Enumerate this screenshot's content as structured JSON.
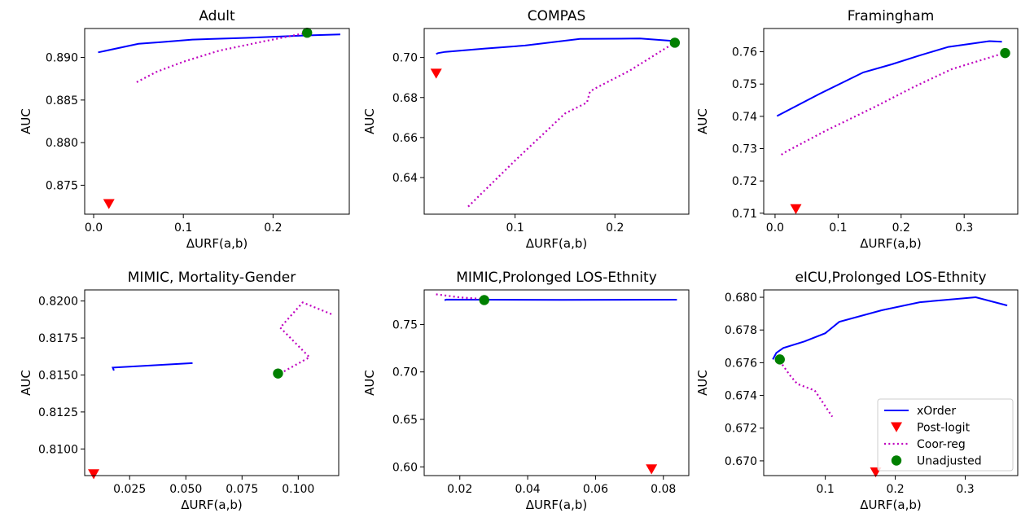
{
  "legend": {
    "entries": [
      {
        "label": "xOrder",
        "series": "xOrder"
      },
      {
        "label": "Post-logit",
        "series": "Post-logit"
      },
      {
        "label": "Coor-reg",
        "series": "Coor-reg"
      },
      {
        "label": "Unadjusted",
        "series": "Unadjusted"
      }
    ],
    "location": "lower-right of last panel"
  },
  "styles": {
    "xOrder": {
      "color": "#0000ff",
      "kind": "solid-line"
    },
    "Post-logit": {
      "color": "#ff0000",
      "kind": "down-triangle"
    },
    "Coor-reg": {
      "color": "#bf00bf",
      "kind": "dotted-line"
    },
    "Unadjusted": {
      "color": "#008000",
      "kind": "circle"
    }
  },
  "chart_data": [
    {
      "type": "line",
      "title": "Adult",
      "xlabel": "ΔURF(a,b)",
      "ylabel": "AUC",
      "xlim": [
        -0.01,
        0.285
      ],
      "ylim": [
        0.8716,
        0.8934
      ],
      "xticks": [
        {
          "v": 0.0,
          "t": "0.0"
        },
        {
          "v": 0.1,
          "t": "0.1"
        },
        {
          "v": 0.2,
          "t": "0.2"
        }
      ],
      "yticks": [
        {
          "v": 0.875,
          "t": "0.875"
        },
        {
          "v": 0.88,
          "t": "0.880"
        },
        {
          "v": 0.885,
          "t": "0.885"
        },
        {
          "v": 0.89,
          "t": "0.890"
        }
      ],
      "grid": false,
      "series": [
        {
          "name": "xOrder",
          "points": [
            [
              0.005,
              0.8906
            ],
            [
              0.05,
              0.8916
            ],
            [
              0.075,
              0.8918
            ],
            [
              0.11,
              0.8921
            ],
            [
              0.17,
              0.8923
            ],
            [
              0.24,
              0.8926
            ],
            [
              0.275,
              0.8927
            ]
          ]
        },
        {
          "name": "Coor-reg",
          "points": [
            [
              0.048,
              0.8871
            ],
            [
              0.07,
              0.8883
            ],
            [
              0.1,
              0.8895
            ],
            [
              0.14,
              0.8908
            ],
            [
              0.19,
              0.8919
            ],
            [
              0.238,
              0.8929
            ]
          ]
        },
        {
          "name": "Post-logit",
          "points": [
            [
              0.017,
              0.8728
            ]
          ]
        },
        {
          "name": "Unadjusted",
          "points": [
            [
              0.238,
              0.8929
            ]
          ]
        }
      ]
    },
    {
      "type": "line",
      "title": "COMPAS",
      "xlabel": "ΔURF(a,b)",
      "ylabel": "AUC",
      "xlim": [
        0.009,
        0.274
      ],
      "ylim": [
        0.6217,
        0.7145
      ],
      "xticks": [
        {
          "v": 0.1,
          "t": "0.1"
        },
        {
          "v": 0.2,
          "t": "0.2"
        }
      ],
      "yticks": [
        {
          "v": 0.64,
          "t": "0.64"
        },
        {
          "v": 0.66,
          "t": "0.66"
        },
        {
          "v": 0.68,
          "t": "0.68"
        },
        {
          "v": 0.7,
          "t": "0.70"
        }
      ],
      "grid": false,
      "series": [
        {
          "name": "xOrder",
          "points": [
            [
              0.021,
              0.7018
            ],
            [
              0.023,
              0.7022
            ],
            [
              0.03,
              0.7028
            ],
            [
              0.07,
              0.7045
            ],
            [
              0.11,
              0.706
            ],
            [
              0.165,
              0.7093
            ],
            [
              0.225,
              0.7095
            ],
            [
              0.258,
              0.7083
            ]
          ]
        },
        {
          "name": "Coor-reg",
          "points": [
            [
              0.053,
              0.6255
            ],
            [
              0.1,
              0.6485
            ],
            [
              0.15,
              0.672
            ],
            [
              0.172,
              0.6775
            ],
            [
              0.175,
              0.683
            ],
            [
              0.18,
              0.6845
            ],
            [
              0.215,
              0.6935
            ],
            [
              0.258,
              0.7069
            ]
          ]
        },
        {
          "name": "Post-logit",
          "points": [
            [
              0.021,
              0.692
            ]
          ]
        },
        {
          "name": "Unadjusted",
          "points": [
            [
              0.26,
              0.7074
            ]
          ]
        }
      ]
    },
    {
      "type": "line",
      "title": "Framingham",
      "xlabel": "ΔURF(a,b)",
      "ylabel": "AUC",
      "xlim": [
        -0.018,
        0.385
      ],
      "ylim": [
        0.7097,
        0.7672
      ],
      "xticks": [
        {
          "v": 0.0,
          "t": "0.0"
        },
        {
          "v": 0.1,
          "t": "0.1"
        },
        {
          "v": 0.2,
          "t": "0.2"
        },
        {
          "v": 0.3,
          "t": "0.3"
        }
      ],
      "yticks": [
        {
          "v": 0.71,
          "t": "0.71"
        },
        {
          "v": 0.72,
          "t": "0.72"
        },
        {
          "v": 0.73,
          "t": "0.73"
        },
        {
          "v": 0.74,
          "t": "0.74"
        },
        {
          "v": 0.75,
          "t": "0.75"
        },
        {
          "v": 0.76,
          "t": "0.76"
        }
      ],
      "grid": false,
      "series": [
        {
          "name": "xOrder",
          "points": [
            [
              0.003,
              0.7401
            ],
            [
              0.07,
              0.7469
            ],
            [
              0.14,
              0.7536
            ],
            [
              0.185,
              0.7561
            ],
            [
              0.23,
              0.7589
            ],
            [
              0.275,
              0.7615
            ],
            [
              0.34,
              0.7633
            ],
            [
              0.36,
              0.7631
            ]
          ]
        },
        {
          "name": "Coor-reg",
          "points": [
            [
              0.01,
              0.7281
            ],
            [
              0.015,
              0.7288
            ],
            [
              0.08,
              0.7355
            ],
            [
              0.16,
              0.7431
            ],
            [
              0.22,
              0.7491
            ],
            [
              0.28,
              0.7546
            ],
            [
              0.362,
              0.7595
            ]
          ]
        },
        {
          "name": "Post-logit",
          "points": [
            [
              0.033,
              0.7113
            ]
          ]
        },
        {
          "name": "Unadjusted",
          "points": [
            [
              0.365,
              0.7596
            ]
          ]
        }
      ]
    },
    {
      "type": "line",
      "title": "MIMIC, Mortality-Gender",
      "xlabel": "ΔURF(a,b)",
      "ylabel": "AUC",
      "xlim": [
        0.005,
        0.118
      ],
      "ylim": [
        0.8082,
        0.82075
      ],
      "xticks": [
        {
          "v": 0.025,
          "t": "0.025"
        },
        {
          "v": 0.05,
          "t": "0.050"
        },
        {
          "v": 0.075,
          "t": "0.075"
        },
        {
          "v": 0.1,
          "t": "0.100"
        }
      ],
      "yticks": [
        {
          "v": 0.81,
          "t": "0.8100"
        },
        {
          "v": 0.8125,
          "t": "0.8125"
        },
        {
          "v": 0.815,
          "t": "0.8150"
        },
        {
          "v": 0.8175,
          "t": "0.8175"
        },
        {
          "v": 0.82,
          "t": "0.8200"
        }
      ],
      "grid": false,
      "series": [
        {
          "name": "xOrder",
          "points": [
            [
              0.018,
              0.8153
            ],
            [
              0.0175,
              0.8155
            ],
            [
              0.053,
              0.8158
            ]
          ]
        },
        {
          "name": "Coor-reg",
          "points": [
            [
              0.092,
              0.8151
            ],
            [
              0.105,
              0.8162
            ],
            [
              0.092,
              0.8182
            ],
            [
              0.102,
              0.8199
            ],
            [
              0.115,
              0.8191
            ]
          ]
        },
        {
          "name": "Post-logit",
          "points": [
            [
              0.009,
              0.8083
            ]
          ]
        },
        {
          "name": "Unadjusted",
          "points": [
            [
              0.091,
              0.8151
            ]
          ]
        }
      ]
    },
    {
      "type": "line",
      "title": "MIMIC,Prolonged LOS-Ethnity",
      "xlabel": "ΔURF(a,b)",
      "ylabel": "AUC",
      "xlim": [
        0.0095,
        0.0875
      ],
      "ylim": [
        0.5908,
        0.7864
      ],
      "xticks": [
        {
          "v": 0.02,
          "t": "0.02"
        },
        {
          "v": 0.04,
          "t": "0.04"
        },
        {
          "v": 0.06,
          "t": "0.06"
        },
        {
          "v": 0.08,
          "t": "0.08"
        }
      ],
      "yticks": [
        {
          "v": 0.6,
          "t": "0.60"
        },
        {
          "v": 0.65,
          "t": "0.65"
        },
        {
          "v": 0.7,
          "t": "0.70"
        },
        {
          "v": 0.75,
          "t": "0.75"
        }
      ],
      "grid": false,
      "series": [
        {
          "name": "xOrder",
          "points": [
            [
              0.0155,
              0.7755
            ],
            [
              0.016,
              0.7762
            ],
            [
              0.05,
              0.7759
            ],
            [
              0.084,
              0.7761
            ]
          ]
        },
        {
          "name": "Coor-reg",
          "points": [
            [
              0.013,
              0.7818
            ],
            [
              0.02,
              0.7785
            ],
            [
              0.027,
              0.7768
            ]
          ]
        },
        {
          "name": "Post-logit",
          "points": [
            [
              0.0765,
              0.5975
            ]
          ]
        },
        {
          "name": "Unadjusted",
          "points": [
            [
              0.0272,
              0.7757
            ]
          ]
        }
      ]
    },
    {
      "type": "line",
      "title": "eICU,Prolonged LOS-Ethnity",
      "xlabel": "ΔURF(a,b)",
      "ylabel": "AUC",
      "xlim": [
        0.012,
        0.375
      ],
      "ylim": [
        0.6691,
        0.68045
      ],
      "xticks": [
        {
          "v": 0.1,
          "t": "0.1"
        },
        {
          "v": 0.2,
          "t": "0.2"
        },
        {
          "v": 0.3,
          "t": "0.3"
        }
      ],
      "yticks": [
        {
          "v": 0.67,
          "t": "0.670"
        },
        {
          "v": 0.672,
          "t": "0.672"
        },
        {
          "v": 0.674,
          "t": "0.674"
        },
        {
          "v": 0.676,
          "t": "0.676"
        },
        {
          "v": 0.678,
          "t": "0.678"
        },
        {
          "v": 0.68,
          "t": "0.680"
        }
      ],
      "grid": false,
      "series": [
        {
          "name": "xOrder",
          "points": [
            [
              0.025,
              0.6762
            ],
            [
              0.03,
              0.6766
            ],
            [
              0.04,
              0.6769
            ],
            [
              0.07,
              0.6773
            ],
            [
              0.1,
              0.6778
            ],
            [
              0.12,
              0.6785
            ],
            [
              0.18,
              0.6792
            ],
            [
              0.235,
              0.6797
            ],
            [
              0.315,
              0.68
            ],
            [
              0.36,
              0.6795
            ]
          ]
        },
        {
          "name": "Coor-reg",
          "points": [
            [
              0.035,
              0.6761
            ],
            [
              0.05,
              0.6752
            ],
            [
              0.06,
              0.6747
            ],
            [
              0.085,
              0.6743
            ],
            [
              0.11,
              0.6727
            ]
          ]
        },
        {
          "name": "Post-logit",
          "points": [
            [
              0.172,
              0.6693
            ]
          ]
        },
        {
          "name": "Unadjusted",
          "points": [
            [
              0.035,
              0.6762
            ]
          ]
        }
      ]
    }
  ]
}
